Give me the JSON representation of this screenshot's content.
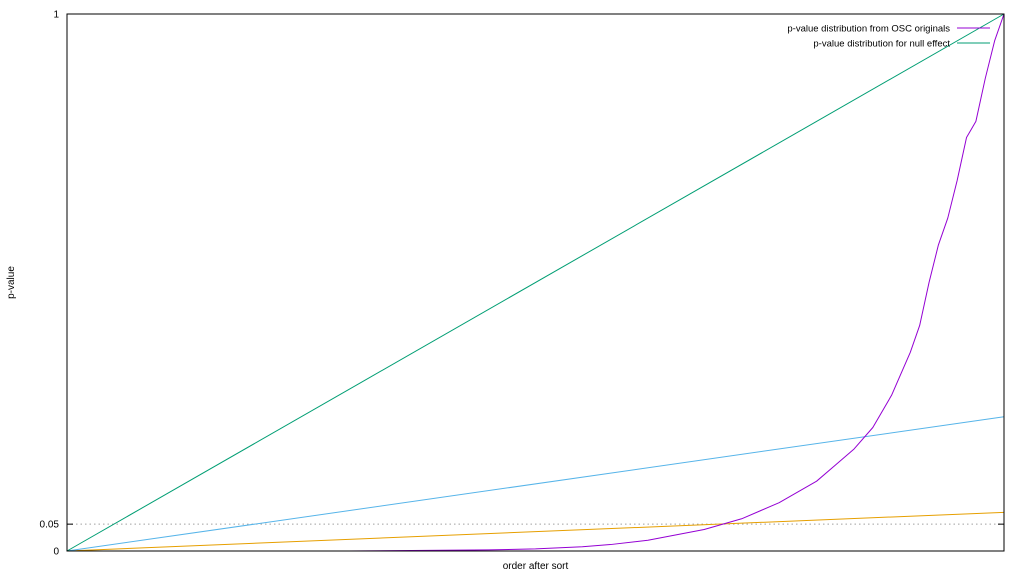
{
  "chart_data": {
    "type": "line",
    "title": "",
    "xlabel": "order after sort",
    "ylabel": "p-value",
    "xlim": [
      0,
      1
    ],
    "ylim": [
      0,
      1
    ],
    "y_ticks": [
      {
        "value": 0,
        "label": "0"
      },
      {
        "value": 0.05,
        "label": "0.05"
      },
      {
        "value": 1,
        "label": "1"
      }
    ],
    "x_tick_labels": [],
    "grid": {
      "y_dotted_at": [
        0.05
      ]
    },
    "legend": "top-right",
    "series": [
      {
        "name": "p-value distribution from OSC originals",
        "color": "#9400d3",
        "in_legend": true,
        "x": [
          0,
          0.3,
          0.45,
          0.5,
          0.55,
          0.58,
          0.62,
          0.65,
          0.68,
          0.7,
          0.72,
          0.74,
          0.76,
          0.78,
          0.8,
          0.82,
          0.84,
          0.86,
          0.88,
          0.9,
          0.91,
          0.92,
          0.93,
          0.94,
          0.95,
          0.96,
          0.97,
          0.98,
          0.99,
          1.0
        ],
        "values": [
          0,
          0,
          0.002,
          0.004,
          0.008,
          0.012,
          0.02,
          0.03,
          0.04,
          0.05,
          0.06,
          0.075,
          0.09,
          0.11,
          0.13,
          0.16,
          0.19,
          0.23,
          0.29,
          0.37,
          0.42,
          0.5,
          0.57,
          0.62,
          0.69,
          0.77,
          0.8,
          0.88,
          0.95,
          1.0
        ]
      },
      {
        "name": "p-value distribution for null effect",
        "color": "#009e73",
        "in_legend": true,
        "x": [
          0,
          1
        ],
        "values": [
          0,
          1
        ]
      },
      {
        "color": "#56b4e9",
        "in_legend": false,
        "x": [
          0,
          1
        ],
        "values": [
          0,
          0.25
        ]
      },
      {
        "color": "#e69f00",
        "in_legend": false,
        "x": [
          0,
          1
        ],
        "values": [
          0,
          0.072
        ]
      }
    ]
  }
}
